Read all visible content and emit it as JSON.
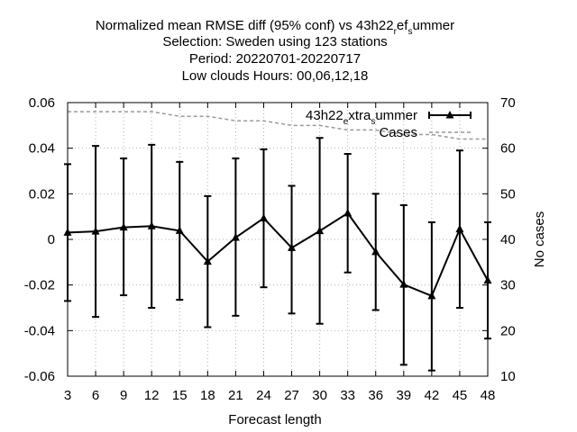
{
  "chart_data": {
    "type": "line",
    "title_lines": [
      "Normalized mean RMSE diff (95% conf) vs 43h22_ref_summer",
      "Selection: Sweden using   123 stations",
      "Period: 20220701-20220717",
      "Low clouds   Hours:  00,06,12,18"
    ],
    "xlabel": "Forecast length",
    "ylabel": "",
    "y2label": "No cases",
    "x": [
      3,
      6,
      9,
      12,
      15,
      18,
      21,
      24,
      27,
      30,
      33,
      36,
      39,
      42,
      45,
      48
    ],
    "xlim": [
      3,
      48
    ],
    "ylim": [
      -0.06,
      0.06
    ],
    "y2lim": [
      10,
      70
    ],
    "xticks": [
      3,
      6,
      9,
      12,
      15,
      18,
      21,
      24,
      27,
      30,
      33,
      36,
      39,
      42,
      45,
      48
    ],
    "yticks": [
      -0.06,
      -0.04,
      -0.02,
      0,
      0.02,
      0.04,
      0.06
    ],
    "ytick_labels": [
      "-0.06",
      "-0.04",
      "-0.02",
      "0",
      "0.02",
      "0.04",
      "0.06"
    ],
    "y2ticks": [
      10,
      20,
      30,
      40,
      50,
      60,
      70
    ],
    "grid": true,
    "legend_position": "top-right",
    "series": [
      {
        "name": "43h22_extra_summer",
        "color": "#000000",
        "marker": "triangle",
        "values": [
          0.003,
          0.0035,
          0.0053,
          0.0058,
          0.0038,
          -0.0097,
          0.0008,
          0.0093,
          -0.0037,
          0.0037,
          0.0115,
          -0.0055,
          -0.0198,
          -0.0248,
          0.0045,
          -0.018
        ],
        "ci_low": [
          -0.027,
          -0.034,
          -0.0245,
          -0.03,
          -0.0265,
          -0.0385,
          -0.0335,
          -0.021,
          -0.0325,
          -0.037,
          -0.0145,
          -0.031,
          -0.055,
          -0.0575,
          -0.03,
          -0.0435
        ],
        "ci_high": [
          0.033,
          0.041,
          0.0355,
          0.0415,
          0.034,
          0.019,
          0.0355,
          0.0395,
          0.0235,
          0.0445,
          0.0375,
          0.02,
          0.015,
          0.0075,
          0.039,
          0.0075
        ]
      },
      {
        "name": "Cases",
        "axis": "y2",
        "color": "#999999",
        "style": "dashed",
        "values": [
          68,
          68,
          68,
          68,
          67,
          67,
          66,
          66,
          65,
          65,
          64,
          64,
          63,
          63,
          62,
          62
        ]
      }
    ]
  }
}
